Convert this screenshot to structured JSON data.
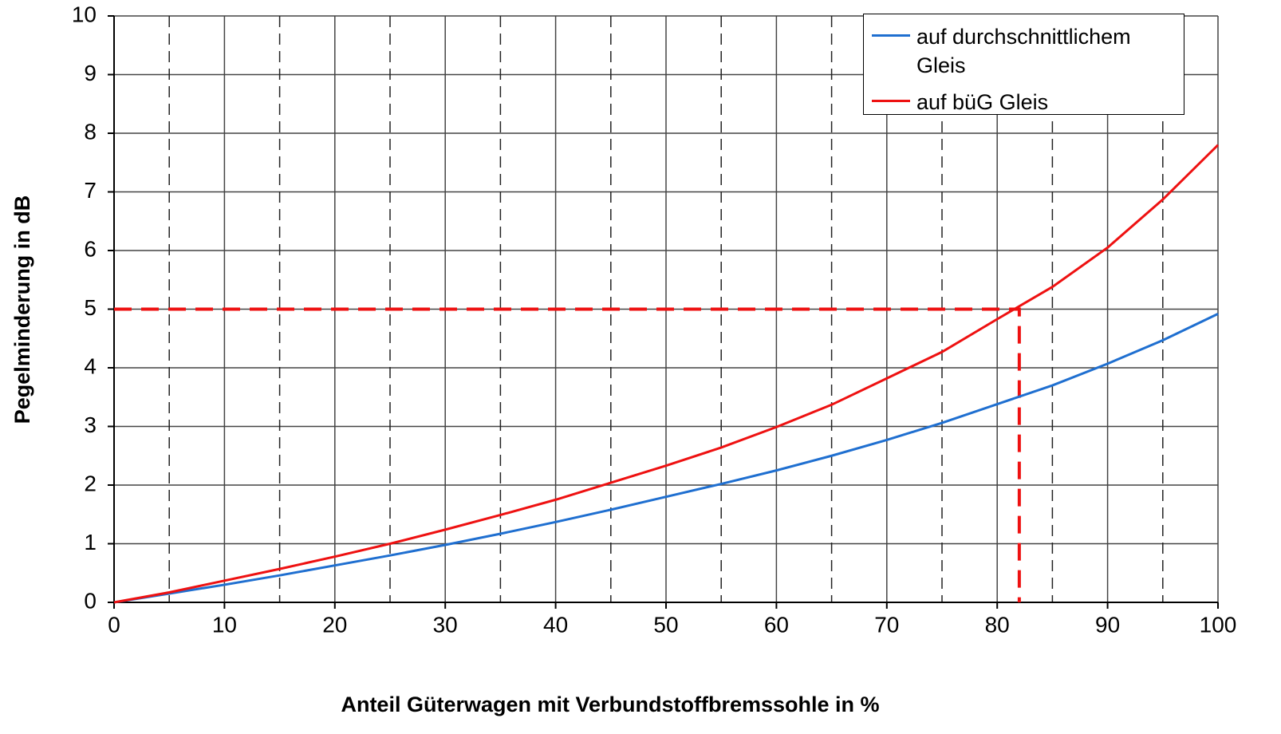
{
  "chart_data": {
    "type": "line",
    "xlabel": "Anteil Güterwagen mit Verbundstoffbremssohle in %",
    "ylabel": "Pegelminderung in dB",
    "x": [
      0,
      5,
      10,
      15,
      20,
      25,
      30,
      35,
      40,
      45,
      50,
      55,
      60,
      65,
      70,
      75,
      80,
      85,
      90,
      95,
      100
    ],
    "series": [
      {
        "name": "auf durchschnittlichem Gleis",
        "color": "#1f6fd0",
        "values": [
          0,
          0.15,
          0.3,
          0.46,
          0.63,
          0.8,
          0.98,
          1.17,
          1.37,
          1.58,
          1.8,
          2.02,
          2.25,
          2.5,
          2.77,
          3.06,
          3.38,
          3.7,
          4.07,
          4.47,
          4.92
        ]
      },
      {
        "name": "auf büG Gleis",
        "color": "#ee1111",
        "values": [
          0,
          0.17,
          0.37,
          0.57,
          0.78,
          1.0,
          1.24,
          1.49,
          1.75,
          2.04,
          2.33,
          2.64,
          2.99,
          3.37,
          3.82,
          4.27,
          4.83,
          5.38,
          6.05,
          6.87,
          7.8
        ]
      }
    ],
    "reference_point": {
      "x": 82,
      "y": 5,
      "color": "#ee1111"
    },
    "xlim": [
      0,
      100
    ],
    "ylim": [
      0,
      10
    ],
    "xticks": [
      0,
      10,
      20,
      30,
      40,
      50,
      60,
      70,
      80,
      90,
      100
    ],
    "x_minor_ticks": [
      5,
      15,
      25,
      35,
      45,
      55,
      65,
      75,
      85,
      95
    ],
    "yticks": [
      0,
      1,
      2,
      3,
      4,
      5,
      6,
      7,
      8,
      9,
      10
    ],
    "grid": true,
    "legend": "upper right"
  }
}
